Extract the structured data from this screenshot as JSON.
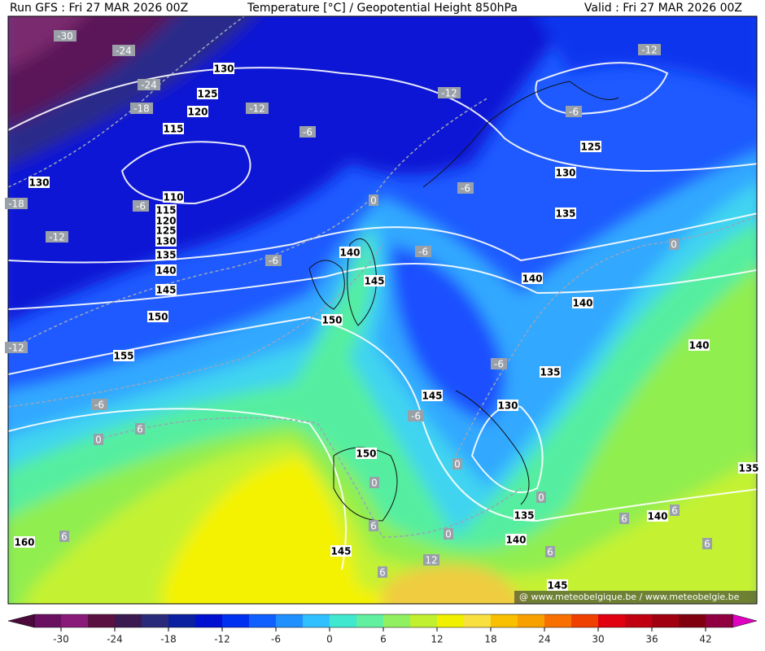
{
  "header": {
    "run": "Run GFS : Fri 27 MAR 2026 00Z",
    "title": "Temperature [°C] / Geopotential Height 850hPa",
    "valid": "Valid : Fri 27 MAR 2026 00Z"
  },
  "height_labels": [
    130,
    125,
    120,
    115,
    130,
    110,
    115,
    120,
    125,
    130,
    135,
    140,
    145,
    150,
    155,
    140,
    145,
    150,
    125,
    130,
    135,
    140,
    140,
    140,
    135,
    145,
    130,
    150,
    135,
    135,
    140,
    140,
    145,
    145,
    160
  ],
  "temperature_labels": [
    -30,
    -24,
    -24,
    -18,
    -12,
    -6,
    -12,
    -12,
    -6,
    -6,
    -18,
    -6,
    -12,
    0,
    -6,
    -6,
    0,
    -12,
    -6,
    -6,
    6,
    0,
    -6,
    0,
    0,
    0,
    6,
    6,
    6,
    6,
    0,
    12,
    6,
    6,
    6
  ],
  "colorbar": {
    "ticks": [
      -30,
      -24,
      -18,
      -12,
      -6,
      0,
      6,
      12,
      18,
      24,
      30,
      36,
      42
    ]
  },
  "watermark": "@ www.meteobelgique.be / www.meteobelgie.be"
}
